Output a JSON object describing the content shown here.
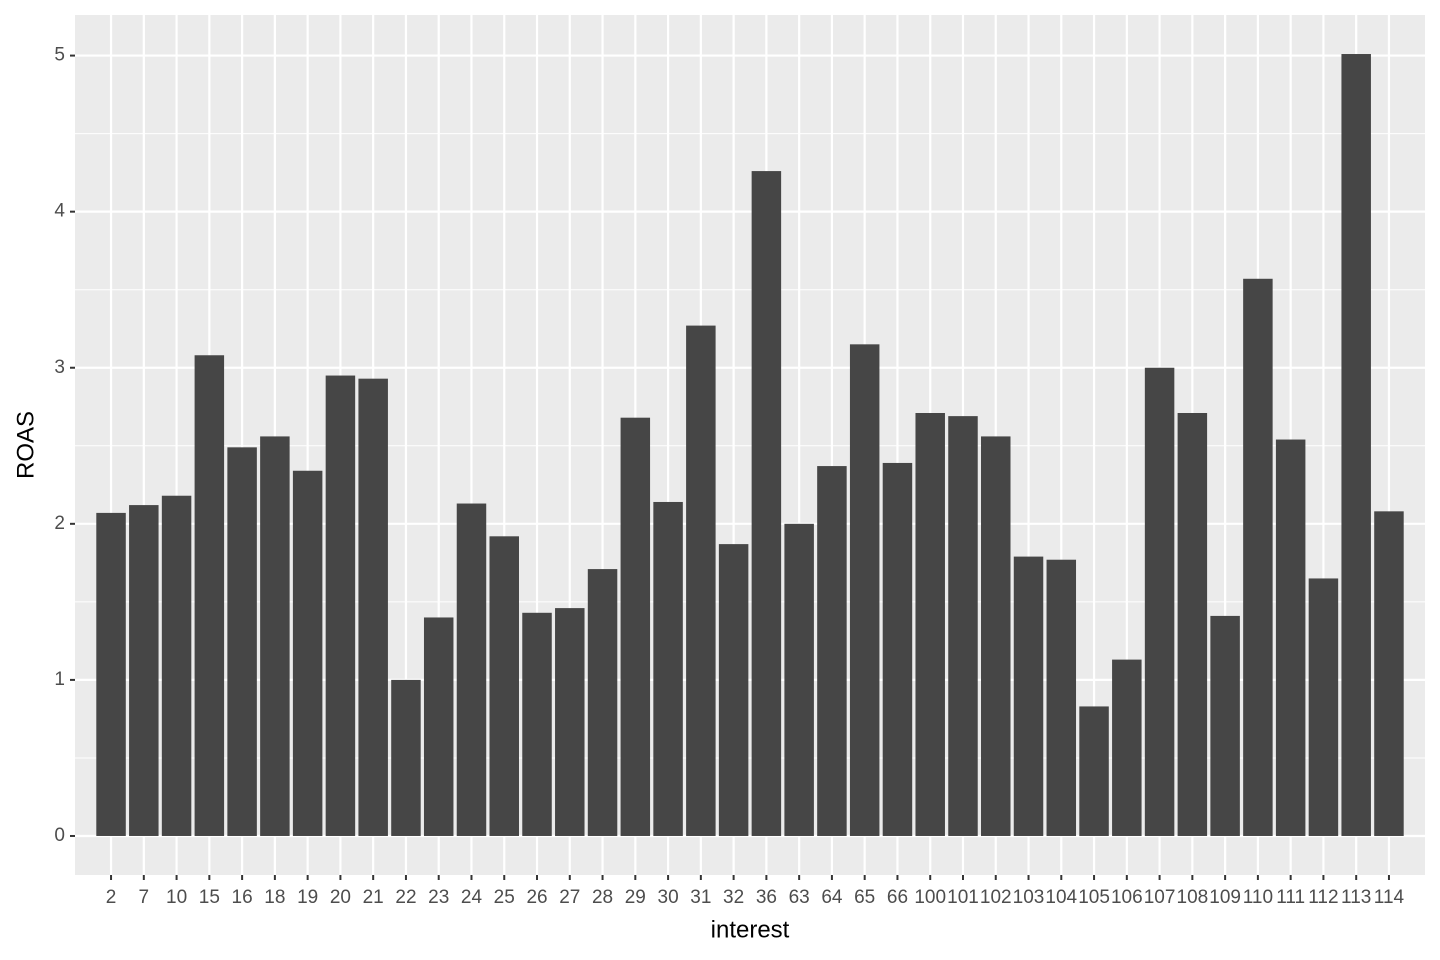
{
  "chart_data": {
    "type": "bar",
    "x_label": "interest",
    "y_label": "ROAS",
    "categories": [
      "2",
      "7",
      "10",
      "15",
      "16",
      "18",
      "19",
      "20",
      "21",
      "22",
      "23",
      "24",
      "25",
      "26",
      "27",
      "28",
      "29",
      "30",
      "31",
      "32",
      "36",
      "63",
      "64",
      "65",
      "66",
      "100",
      "101",
      "102",
      "103",
      "104",
      "105",
      "106",
      "107",
      "108",
      "109",
      "110",
      "111",
      "112",
      "113",
      "114"
    ],
    "values": [
      2.07,
      2.12,
      2.18,
      3.08,
      2.49,
      2.56,
      2.34,
      2.95,
      2.93,
      1.0,
      1.4,
      2.13,
      1.92,
      1.43,
      1.46,
      1.71,
      2.68,
      2.14,
      3.27,
      1.87,
      4.26,
      2.0,
      2.37,
      3.15,
      2.39,
      2.71,
      2.69,
      2.56,
      1.79,
      1.77,
      0.83,
      1.13,
      3.0,
      2.71,
      1.41,
      3.57,
      2.54,
      1.65,
      5.01,
      2.08
    ],
    "color": "#464646",
    "ylim": [
      -0.25,
      5.26
    ],
    "yticks": [
      0,
      1,
      2,
      3,
      4,
      5
    ],
    "grid": true
  }
}
